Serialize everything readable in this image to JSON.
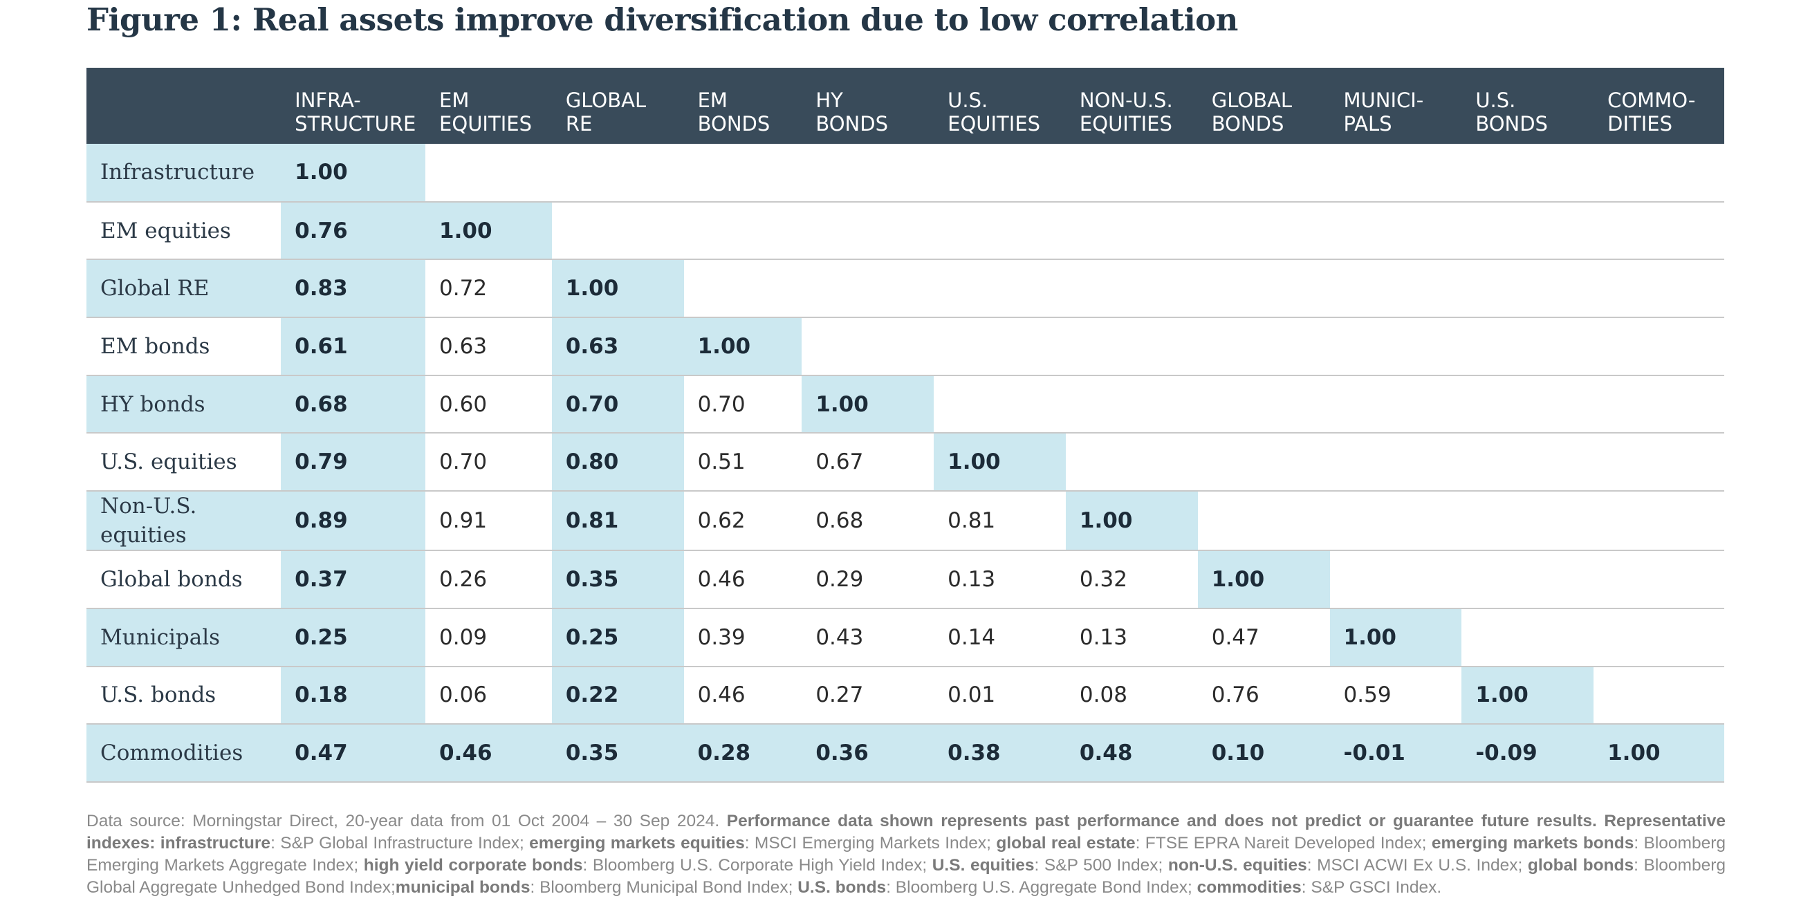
{
  "title": "Figure 1: Real assets improve diversification due to low correlation",
  "columns": [
    "INFRA-\nSTRUCTURE",
    "EM\nEQUITIES",
    "GLOBAL\nRE",
    "EM\nBONDS",
    "HY\nBONDS",
    "U.S.\nEQUITIES",
    "NON-U.S.\nEQUITIES",
    "GLOBAL\nBONDS",
    "MUNICI-\nPALS",
    "U.S.\nBONDS",
    "COMMO-\nDITIES"
  ],
  "rows": [
    {
      "label": "Infrastructure",
      "values": [
        "1.00"
      ]
    },
    {
      "label": "EM equities",
      "values": [
        "0.76",
        "1.00"
      ]
    },
    {
      "label": "Global RE",
      "values": [
        "0.83",
        "0.72",
        "1.00"
      ]
    },
    {
      "label": "EM bonds",
      "values": [
        "0.61",
        "0.63",
        "0.63",
        "1.00"
      ]
    },
    {
      "label": "HY bonds",
      "values": [
        "0.68",
        "0.60",
        "0.70",
        "0.70",
        "1.00"
      ]
    },
    {
      "label": "U.S. equities",
      "values": [
        "0.79",
        "0.70",
        "0.80",
        "0.51",
        "0.67",
        "1.00"
      ]
    },
    {
      "label": "Non-U.S.\nequities",
      "values": [
        "0.89",
        "0.91",
        "0.81",
        "0.62",
        "0.68",
        "0.81",
        "1.00"
      ]
    },
    {
      "label": "Global bonds",
      "values": [
        "0.37",
        "0.26",
        "0.35",
        "0.46",
        "0.29",
        "0.13",
        "0.32",
        "1.00"
      ]
    },
    {
      "label": "Municipals",
      "values": [
        "0.25",
        "0.09",
        "0.25",
        "0.39",
        "0.43",
        "0.14",
        "0.13",
        "0.47",
        "1.00"
      ]
    },
    {
      "label": "U.S. bonds",
      "values": [
        "0.18",
        "0.06",
        "0.22",
        "0.46",
        "0.27",
        "0.01",
        "0.08",
        "0.76",
        "0.59",
        "1.00"
      ]
    },
    {
      "label": "Commodities",
      "values": [
        "0.47",
        "0.46",
        "0.35",
        "0.28",
        "0.36",
        "0.38",
        "0.48",
        "0.10",
        "-0.01",
        "-0.09",
        "1.00"
      ]
    }
  ],
  "footnote": [
    {
      "t": "Data source: Morningstar Direct, 20-year data from 01 Oct 2004 – 30 Sep 2024. ",
      "b": false
    },
    {
      "t": "Performance data shown represents past performance and does not predict or guarantee future results. Representative indexes: infrastructure",
      "b": true
    },
    {
      "t": ": S&P Global Infrastructure Index; ",
      "b": false
    },
    {
      "t": "emerging markets equities",
      "b": true
    },
    {
      "t": ": MSCI Emerging Markets Index; ",
      "b": false
    },
    {
      "t": "global real estate",
      "b": true
    },
    {
      "t": ": FTSE EPRA Nareit Developed Index; ",
      "b": false
    },
    {
      "t": "emerging markets bonds",
      "b": true
    },
    {
      "t": ": Bloomberg Emerging Markets Aggregate Index; ",
      "b": false
    },
    {
      "t": "high yield corporate bonds",
      "b": true
    },
    {
      "t": ": Bloomberg U.S. Corporate High Yield Index; ",
      "b": false
    },
    {
      "t": "U.S. equities",
      "b": true
    },
    {
      "t": ": S&P 500 Index; ",
      "b": false
    },
    {
      "t": "non-U.S. equities",
      "b": true
    },
    {
      "t": ": MSCI ACWI Ex U.S. Index; ",
      "b": false
    },
    {
      "t": "global bonds",
      "b": true
    },
    {
      "t": ": Bloomberg Global Aggregate Unhedged Bond Index;",
      "b": false
    },
    {
      "t": "municipal bonds",
      "b": true
    },
    {
      "t": ": Bloomberg Municipal Bond Index; ",
      "b": false
    },
    {
      "t": "U.S. bonds",
      "b": true
    },
    {
      "t": ": Bloomberg U.S. Aggregate Bond Index; ",
      "b": false
    },
    {
      "t": "commodities",
      "b": true
    },
    {
      "t": ": S&P GSCI Index.",
      "b": false
    }
  ],
  "colors": {
    "header_bg": "#394b5a",
    "highlight": "#cce8f0",
    "title": "#243646"
  }
}
